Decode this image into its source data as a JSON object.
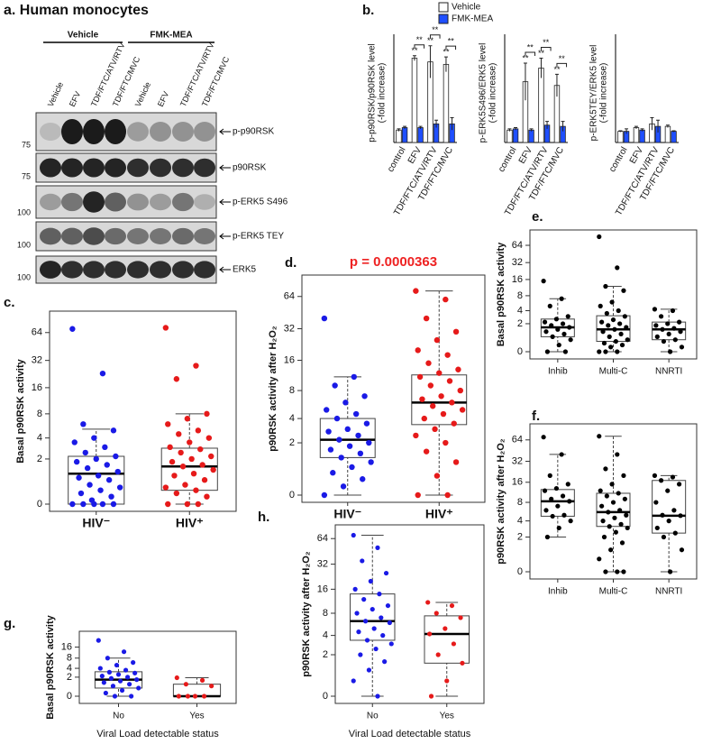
{
  "blot": {
    "title": "a. Human monocytes",
    "groups": [
      "Vehicle",
      "FMK-MEA"
    ],
    "lanes": [
      "Vehicle",
      "EFV",
      "TDF/FTC/ATV/RTV",
      "TDF/FTC/MVC",
      "Vehicle",
      "EFV",
      "TDF/FTC/ATV/RTV",
      "TDF/FTC/MVC"
    ],
    "bands": [
      "p-p90RSK",
      "p90RSK",
      "p-ERK5 S496",
      "p-ERK5 TEY",
      "ERK5"
    ],
    "mw": [
      "75",
      "75",
      "100",
      "100",
      "100"
    ]
  },
  "chart_data": [
    {
      "type": "bar",
      "panel": "b.",
      "legend": "top",
      "ylabel": [
        "p-p90RSK/p90RSK level",
        "(-fold increase)"
      ],
      "categories": [
        "control",
        "EFV",
        "TDF/FTC/ATV/RTV",
        "TDF/FTC/MVC"
      ],
      "series": [
        {
          "name": "Vehicle",
          "color": "#ffffff",
          "values": [
            1.0,
            6.8,
            6.5,
            6.3
          ],
          "errors": [
            0.1,
            0.2,
            1.3,
            0.6
          ]
        },
        {
          "name": "FMK-MEA",
          "color": "#1f4fff",
          "values": [
            1.2,
            1.2,
            1.5,
            1.5
          ],
          "errors": [
            0.1,
            0.1,
            0.3,
            0.5
          ]
        }
      ],
      "bar_labels": [
        null,
        "**",
        "**",
        "**"
      ],
      "bracket_labels": [
        null,
        "**",
        "**",
        "**"
      ],
      "ylim": [
        0,
        8
      ]
    },
    {
      "type": "bar",
      "ylabel": [
        "p-ERK5S496/ERK5 level",
        "(-fold increase)"
      ],
      "categories": [
        "control",
        "EFV",
        "TDF/FTC/ATV/RTV",
        "TDF/FTC/MVC"
      ],
      "series": [
        {
          "name": "Vehicle",
          "color": "#ffffff",
          "values": [
            1.0,
            4.9,
            6.0,
            4.6
          ],
          "errors": [
            0.1,
            1.5,
            0.8,
            0.9
          ]
        },
        {
          "name": "FMK-MEA",
          "color": "#1f4fff",
          "values": [
            1.1,
            1.0,
            1.4,
            1.3
          ],
          "errors": [
            0.1,
            0.1,
            0.3,
            0.4
          ]
        }
      ],
      "bar_labels": [
        null,
        "**",
        "**",
        "**"
      ],
      "bracket_labels": [
        null,
        "**",
        "**",
        "**"
      ],
      "ylim": [
        0,
        8
      ]
    },
    {
      "type": "bar",
      "ylabel": [
        "p-ERK5TEY/ERK5 level",
        "(-fold increase)"
      ],
      "categories": [
        "control",
        "EFV",
        "TDF/FTC/ATV/RTV",
        "TDF/FTC/MVC"
      ],
      "series": [
        {
          "name": "Vehicle",
          "color": "#ffffff",
          "values": [
            0.9,
            1.2,
            1.5,
            1.3
          ],
          "errors": [
            0.05,
            0.1,
            0.5,
            0.1
          ]
        },
        {
          "name": "FMK-MEA",
          "color": "#1f4fff",
          "values": [
            0.9,
            1.0,
            1.3,
            0.9
          ],
          "errors": [
            0.2,
            0.1,
            0.5,
            0.05
          ]
        }
      ],
      "ylim": [
        0,
        8
      ]
    },
    {
      "type": "box",
      "panel": "c.",
      "ylabel": "Basal p90RSK activity",
      "yscale": "log2(1+x)",
      "categories": [
        "HIV⁻",
        "HIV⁺"
      ],
      "colors": [
        "#1a1ae6",
        "#e61a1a"
      ],
      "boxes": [
        {
          "whislo": 0,
          "q1": 0,
          "med": 1.1,
          "q3": 2.2,
          "whishi": 5.2
        },
        {
          "whislo": 0,
          "q1": 0.4,
          "med": 1.5,
          "q3": 2.9,
          "whishi": 8
        }
      ],
      "points": [
        [
          70,
          23,
          6,
          5,
          4,
          3.5,
          3,
          2.5,
          2.2,
          2,
          1.8,
          1.6,
          1.4,
          1.2,
          1,
          0.9,
          0.8,
          0.6,
          0.5,
          0.4,
          0.3,
          0.2,
          0.1,
          0,
          0,
          0,
          0,
          0
        ],
        [
          72,
          28,
          20,
          8,
          7,
          6,
          5,
          4.5,
          4,
          3.5,
          3,
          2.8,
          2.5,
          2.2,
          2,
          1.8,
          1.6,
          1.5,
          1.3,
          1.1,
          1,
          0.8,
          0.6,
          0.5,
          0.4,
          0.3,
          0.2,
          0,
          0,
          0
        ]
      ],
      "ylim": [
        0,
        95
      ],
      "yticks": [
        0,
        2,
        4,
        8,
        16,
        32,
        64
      ]
    },
    {
      "type": "box",
      "panel": "d.",
      "title": "p = 0.0000363",
      "ylabel": "p90RSK activity after H₂O₂",
      "yscale": "log2(1+x)",
      "categories": [
        "HIV⁻",
        "HIV⁺"
      ],
      "colors": [
        "#1a1ae6",
        "#e61a1a"
      ],
      "boxes": [
        {
          "whislo": 0,
          "q1": 1.2,
          "med": 2.2,
          "q3": 4,
          "whishi": 11
        },
        {
          "whislo": 0,
          "q1": 3.4,
          "med": 6,
          "q3": 11.5,
          "whishi": 72
        }
      ],
      "points": [
        [
          40,
          11,
          9,
          7,
          6,
          5,
          4.5,
          4,
          3.5,
          3,
          2.8,
          2.5,
          2.2,
          2,
          1.8,
          1.6,
          1.4,
          1.2,
          1,
          0.8,
          0.6,
          0.4,
          0.2,
          0
        ],
        [
          72,
          60,
          40,
          30,
          25,
          20,
          18,
          15,
          13,
          12,
          11,
          10,
          9,
          8,
          7,
          6.5,
          6,
          5.5,
          5,
          4.5,
          4,
          3.5,
          3,
          2.5,
          2,
          1.5,
          1,
          0.5,
          0,
          0
        ]
      ],
      "ylim": [
        0,
        90
      ],
      "yticks": [
        0,
        2,
        4,
        8,
        16,
        32,
        64
      ]
    },
    {
      "type": "box",
      "panel": "e.",
      "ylabel": "Basal p90RSK activity",
      "yscale": "log2(1+x)",
      "categories": [
        "Inhib",
        "Multi-C",
        "NNRTI"
      ],
      "colors": [
        "#000000",
        "#000000",
        "#000000"
      ],
      "boxes": [
        {
          "whislo": 0,
          "q1": 0.8,
          "med": 1.6,
          "q3": 2.6,
          "whishi": 7
        },
        {
          "whislo": 0,
          "q1": 0.5,
          "med": 1.4,
          "q3": 3.1,
          "whishi": 12
        },
        {
          "whislo": 0,
          "q1": 0.6,
          "med": 1.4,
          "q3": 2.2,
          "whishi": 4.3
        }
      ],
      "points": [
        [
          15,
          7,
          5,
          3,
          2.6,
          2.2,
          2,
          1.8,
          1.6,
          1.4,
          1.2,
          1,
          0.8,
          0.6,
          0.3,
          0,
          0
        ],
        [
          90,
          26,
          12,
          10,
          6,
          5,
          4,
          3.5,
          3,
          2.5,
          2.2,
          2,
          1.8,
          1.6,
          1.4,
          1.2,
          1,
          0.8,
          0.6,
          0.5,
          0.4,
          0.3,
          0.2,
          0,
          0,
          0
        ],
        [
          4.3,
          4,
          3,
          2.2,
          2,
          1.8,
          1.5,
          1.4,
          1.2,
          1,
          0.8,
          0.6,
          0.5,
          0.2,
          0
        ]
      ],
      "ylim": [
        0,
        95
      ],
      "yticks": [
        0,
        2,
        4,
        8,
        16,
        32,
        64
      ]
    },
    {
      "type": "box",
      "panel": "f.",
      "ylabel": "p90RSK  activity after H₂O₂",
      "yscale": "log2(1+x)",
      "categories": [
        "Inhib",
        "Multi-C",
        "NNRTI"
      ],
      "colors": [
        "#000000",
        "#000000",
        "#000000"
      ],
      "boxes": [
        {
          "whislo": 2,
          "q1": 4.8,
          "med": 8.3,
          "q3": 12.5,
          "whishi": 40
        },
        {
          "whislo": 0,
          "q1": 3.2,
          "med": 5.6,
          "q3": 11,
          "whishi": 72
        },
        {
          "whislo": 0,
          "q1": 2.4,
          "med": 4.9,
          "q3": 17,
          "whishi": 20
        }
      ],
      "points": [
        [
          70,
          40,
          20,
          15,
          13,
          12,
          10,
          9,
          8.3,
          7,
          6,
          5,
          4.8,
          4,
          3,
          2
        ],
        [
          72,
          40,
          25,
          20,
          15,
          12,
          11,
          10,
          9,
          8,
          7,
          6,
          5.6,
          5,
          4.5,
          4,
          3.5,
          3.2,
          3,
          2.5,
          2,
          1.5,
          1,
          0.5,
          0,
          0,
          0
        ],
        [
          20,
          19,
          17,
          15,
          12,
          8,
          6,
          5,
          4.9,
          4,
          3,
          2.4,
          2,
          1,
          0
        ]
      ],
      "ylim": [
        0,
        90
      ],
      "yticks": [
        0,
        2,
        4,
        8,
        16,
        32,
        64
      ]
    },
    {
      "type": "box",
      "panel": "g.",
      "ylabel": "Basal p90RSK activity",
      "xlabel": "Viral Load detectable status",
      "yscale": "log2(1+x)",
      "categories": [
        "No",
        "Yes"
      ],
      "colors": [
        "#1a1ae6",
        "#e61a1a"
      ],
      "boxes": [
        {
          "whislo": 0,
          "q1": 0.6,
          "med": 1.6,
          "q3": 3.1,
          "whishi": 8
        },
        {
          "whislo": 0,
          "q1": 0,
          "med": 0,
          "q3": 1,
          "whishi": 1.9
        }
      ],
      "points": [
        [
          24,
          12,
          8,
          6,
          5,
          4,
          3.5,
          3,
          2.8,
          2.5,
          2.2,
          2,
          1.8,
          1.6,
          1.4,
          1.2,
          1,
          0.8,
          0.6,
          0.4,
          0.2,
          0,
          0
        ],
        [
          1.9,
          1.5,
          1,
          0.8,
          0,
          0,
          0,
          0
        ]
      ],
      "ylim": [
        0,
        30
      ],
      "yticks": [
        0,
        2,
        4,
        8,
        16
      ]
    },
    {
      "type": "box",
      "panel": "h.",
      "ylabel": "p90RSK activity after H₂O₂",
      "xlabel": "Viral Load detectable status",
      "yscale": "log2(1+x)",
      "categories": [
        "No",
        "Yes"
      ],
      "colors": [
        "#1a1ae6",
        "#e61a1a"
      ],
      "boxes": [
        {
          "whislo": 0,
          "q1": 3.4,
          "med": 6.3,
          "q3": 14,
          "whishi": 70
        },
        {
          "whislo": 0,
          "q1": 1.4,
          "med": 4.2,
          "q3": 7.4,
          "whishi": 11
        }
      ],
      "points": [
        [
          70,
          50,
          35,
          25,
          20,
          16,
          14,
          12,
          10,
          9,
          8,
          7,
          6.3,
          6,
          5,
          4.5,
          4,
          3.4,
          3,
          2.5,
          2,
          1.5,
          1,
          0.5,
          0
        ],
        [
          11,
          10,
          8,
          7,
          5,
          4.2,
          3,
          2,
          1.4,
          0.5,
          0
        ]
      ],
      "ylim": [
        0,
        80
      ],
      "yticks": [
        0,
        2,
        4,
        8,
        16,
        32,
        64
      ]
    }
  ]
}
